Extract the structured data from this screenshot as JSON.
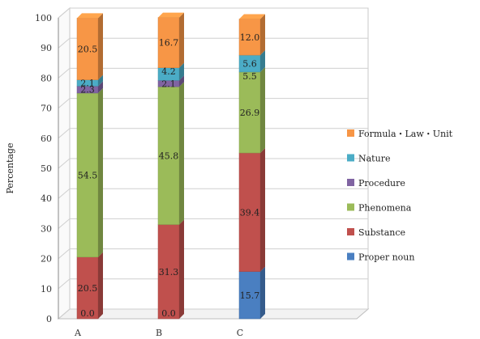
{
  "chart_data": {
    "type": "bar",
    "stacked": true,
    "categories": [
      "A",
      "B",
      "C"
    ],
    "ylabel": "Percentage",
    "ylim": [
      0,
      100
    ],
    "yticks": [
      0,
      10,
      20,
      30,
      40,
      50,
      60,
      70,
      80,
      90,
      100
    ],
    "grid": true,
    "legend_position": "right",
    "series": [
      {
        "name": "Proper noun",
        "color": "#4a7fc1",
        "values": [
          0.0,
          0.0,
          15.7
        ],
        "labels": [
          "0.0",
          "0.0",
          "15.7"
        ]
      },
      {
        "name": "Substance",
        "color": "#c0504d",
        "values": [
          20.5,
          31.3,
          39.4
        ],
        "labels": [
          "20.5",
          "31.3",
          "39.4"
        ]
      },
      {
        "name": "Phenomena",
        "color": "#9bbb59",
        "values": [
          54.5,
          45.8,
          26.9
        ],
        "labels": [
          "54.5",
          "45.8",
          "26.9"
        ]
      },
      {
        "name": "Procedure",
        "color": "#8064a2",
        "values": [
          2.3,
          2.1,
          0.0
        ],
        "labels": [
          "2.3",
          "2.1",
          ""
        ]
      },
      {
        "name": "Nature",
        "color": "#4bacc6",
        "values": [
          2.1,
          4.2,
          5.6
        ],
        "labels": [
          "2.1",
          "4.2",
          "5.6"
        ]
      },
      {
        "name": "Formula・Law・Unit",
        "color": "#f79646",
        "values": [
          20.5,
          16.7,
          12.0
        ],
        "labels": [
          "20.5",
          "16.7",
          "12.0"
        ]
      }
    ],
    "extra_labels": [
      {
        "category": "C",
        "text": "5.5",
        "series": "Phenomena"
      }
    ]
  }
}
